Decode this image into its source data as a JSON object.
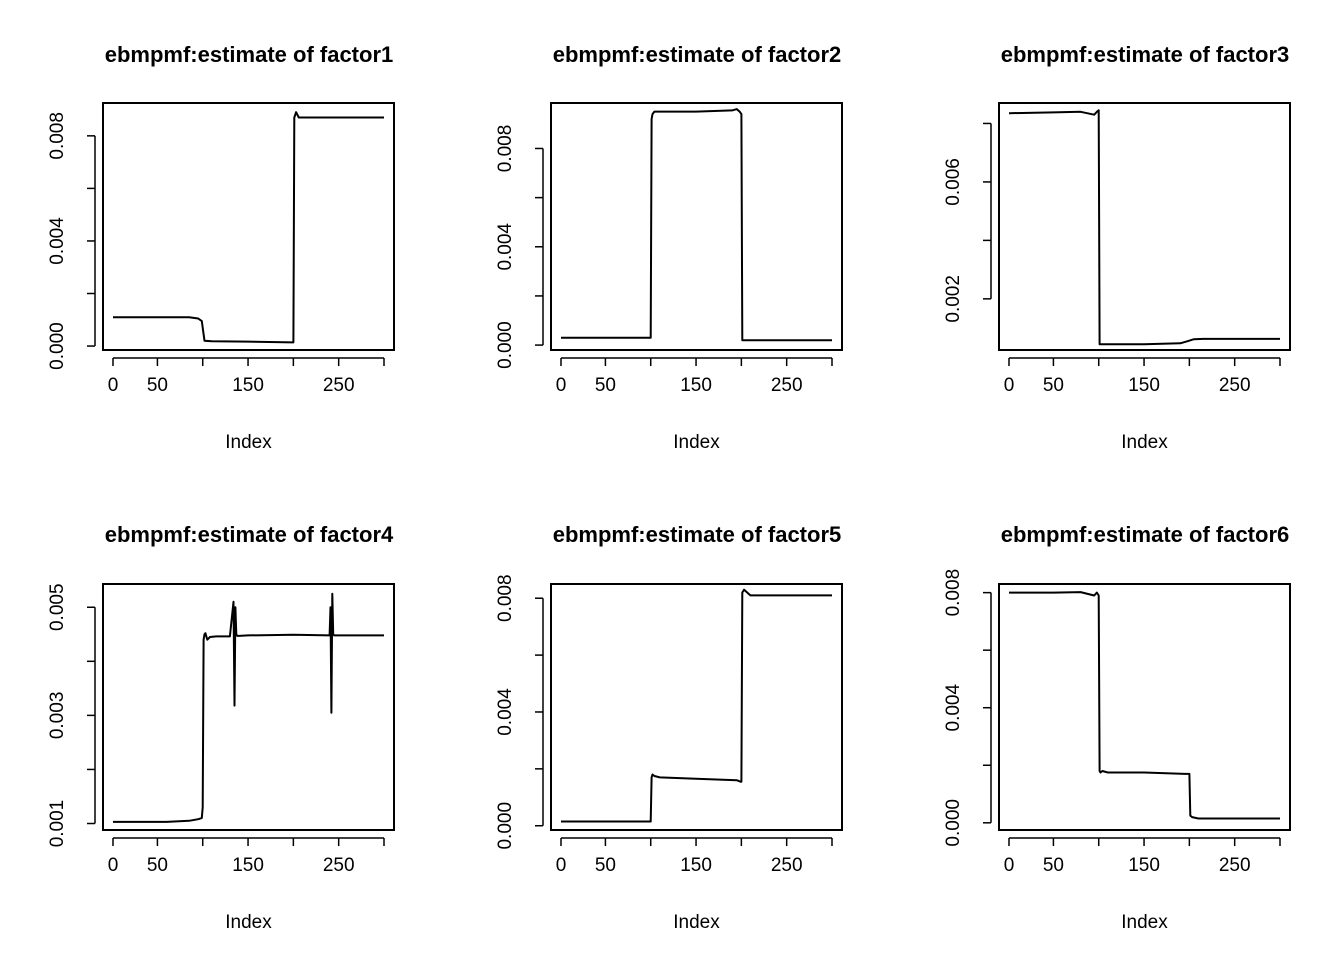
{
  "chart_data": [
    {
      "type": "line",
      "title": "ebmpmf:estimate of factor1",
      "xlabel": "Index",
      "ylabel": "",
      "xlim": [
        1,
        300
      ],
      "ylim": [
        -0.00015,
        0.00925
      ],
      "xticks": [
        0,
        50,
        150,
        250
      ],
      "xtick_minor": [
        100,
        200,
        300
      ],
      "yticks": [
        0.0,
        0.004,
        0.008
      ],
      "yticks_all": [
        0.0,
        0.002,
        0.004,
        0.006,
        0.008
      ],
      "ytick_labels": [
        "0.000",
        "0.004",
        "0.008"
      ],
      "series": [
        {
          "x": [
            1,
            85,
            95,
            99,
            101,
            102,
            110,
            150,
            198,
            200,
            201,
            203,
            206,
            215,
            240,
            270,
            300
          ],
          "y": [
            0.0011,
            0.0011,
            0.00105,
            0.00095,
            0.00045,
            0.0002,
            0.00018,
            0.00017,
            0.00014,
            0.00014,
            0.0087,
            0.0089,
            0.0087,
            0.0087,
            0.0087,
            0.0087,
            0.0087
          ]
        }
      ]
    },
    {
      "type": "line",
      "title": "ebmpmf:estimate of factor2",
      "xlabel": "Index",
      "ylabel": "",
      "xlim": [
        1,
        300
      ],
      "ylim": [
        -0.0002,
        0.00985
      ],
      "xticks": [
        0,
        50,
        150,
        250
      ],
      "xtick_minor": [
        100,
        200,
        300
      ],
      "yticks": [
        0.0,
        0.004,
        0.008
      ],
      "yticks_all": [
        0.0,
        0.002,
        0.004,
        0.006,
        0.008
      ],
      "ytick_labels": [
        "0.000",
        "0.004",
        "0.008"
      ],
      "series": [
        {
          "x": [
            1,
            100,
            101,
            102,
            104,
            110,
            150,
            190,
            195,
            198,
            200,
            201,
            205,
            250,
            300
          ],
          "y": [
            0.0003,
            0.0003,
            0.0092,
            0.0094,
            0.0095,
            0.0095,
            0.0095,
            0.00955,
            0.0096,
            0.0095,
            0.0094,
            0.0002,
            0.0002,
            0.0002,
            0.0002
          ]
        }
      ]
    },
    {
      "type": "line",
      "title": "ebmpmf:estimate of factor3",
      "xlabel": "Index",
      "ylabel": "",
      "xlim": [
        1,
        300
      ],
      "ylim": [
        0.00025,
        0.0087
      ],
      "xticks": [
        0,
        50,
        150,
        250
      ],
      "xtick_minor": [
        100,
        200,
        300
      ],
      "yticks": [
        0.002,
        0.006
      ],
      "yticks_all": [
        0.002,
        0.004,
        0.006,
        0.008
      ],
      "ytick_labels": [
        "0.002",
        "0.006"
      ],
      "series": [
        {
          "x": [
            1,
            50,
            80,
            95,
            98,
            100,
            101,
            102,
            150,
            190,
            198,
            205,
            215,
            300
          ],
          "y": [
            0.00835,
            0.00838,
            0.0084,
            0.0083,
            0.0084,
            0.00845,
            0.00045,
            0.00045,
            0.00045,
            0.00048,
            0.00055,
            0.00062,
            0.00063,
            0.00063
          ]
        }
      ]
    },
    {
      "type": "line",
      "title": "ebmpmf:estimate of factor4",
      "xlabel": "Index",
      "ylabel": "",
      "xlim": [
        1,
        300
      ],
      "ylim": [
        0.00088,
        0.00543
      ],
      "xticks": [
        0,
        50,
        150,
        250
      ],
      "xtick_minor": [
        100,
        200,
        300
      ],
      "yticks": [
        0.001,
        0.003,
        0.005
      ],
      "yticks_all": [
        0.001,
        0.002,
        0.003,
        0.004,
        0.005
      ],
      "ytick_labels": [
        "0.001",
        "0.003",
        "0.005"
      ],
      "series": [
        {
          "x": [
            1,
            60,
            85,
            95,
            99,
            100,
            101,
            102,
            103,
            105,
            108,
            115,
            130,
            134,
            135,
            136,
            137,
            138,
            139,
            140,
            150,
            200,
            240,
            241,
            242,
            243,
            244,
            245,
            246,
            250,
            300
          ],
          "y": [
            0.00103,
            0.00103,
            0.00105,
            0.00108,
            0.0011,
            0.0013,
            0.0044,
            0.0045,
            0.00452,
            0.0044,
            0.00445,
            0.00446,
            0.00446,
            0.0051,
            0.00318,
            0.005,
            0.0045,
            0.00447,
            0.00447,
            0.00447,
            0.00448,
            0.00449,
            0.00448,
            0.005,
            0.00305,
            0.00525,
            0.0045,
            0.00448,
            0.00448,
            0.00448,
            0.00448
          ]
        }
      ]
    },
    {
      "type": "line",
      "title": "ebmpmf:estimate of factor5",
      "xlabel": "Index",
      "ylabel": "",
      "xlim": [
        1,
        300
      ],
      "ylim": [
        -0.00015,
        0.0085
      ],
      "xticks": [
        0,
        50,
        150,
        250
      ],
      "xtick_minor": [
        100,
        200,
        300
      ],
      "yticks": [
        0.0,
        0.004,
        0.008
      ],
      "yticks_all": [
        0.0,
        0.002,
        0.004,
        0.006,
        0.008
      ],
      "ytick_labels": [
        "0.000",
        "0.004",
        "0.008"
      ],
      "series": [
        {
          "x": [
            1,
            100,
            101,
            102,
            104,
            110,
            150,
            195,
            199,
            200,
            201,
            203,
            210,
            250,
            300
          ],
          "y": [
            0.00015,
            0.00015,
            0.0017,
            0.0018,
            0.00175,
            0.0017,
            0.00165,
            0.0016,
            0.00155,
            0.00155,
            0.0082,
            0.0083,
            0.0081,
            0.0081,
            0.0081
          ]
        }
      ]
    },
    {
      "type": "line",
      "title": "ebmpmf:estimate of factor6",
      "xlabel": "Index",
      "ylabel": "",
      "xlim": [
        1,
        300
      ],
      "ylim": [
        -0.00025,
        0.0083
      ],
      "xticks": [
        0,
        50,
        150,
        250
      ],
      "xtick_minor": [
        100,
        200,
        300
      ],
      "yticks": [
        0.0,
        0.004,
        0.008
      ],
      "yticks_all": [
        0.0,
        0.002,
        0.004,
        0.006,
        0.008
      ],
      "ytick_labels": [
        "0.000",
        "0.004",
        "0.008"
      ],
      "series": [
        {
          "x": [
            1,
            50,
            80,
            95,
            98,
            100,
            101,
            102,
            104,
            110,
            150,
            195,
            199,
            200,
            201,
            203,
            210,
            250,
            300
          ],
          "y": [
            0.008,
            0.008,
            0.00802,
            0.0079,
            0.008,
            0.0079,
            0.0018,
            0.00175,
            0.0018,
            0.00175,
            0.00175,
            0.0017,
            0.0017,
            0.0017,
            0.00025,
            0.0002,
            0.00015,
            0.00015,
            0.00015
          ]
        }
      ]
    }
  ]
}
